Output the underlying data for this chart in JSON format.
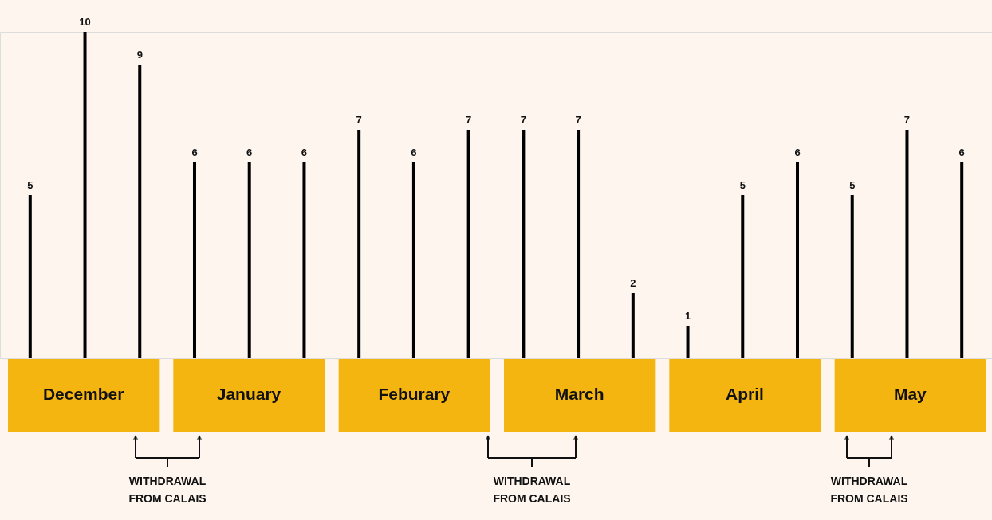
{
  "chart_data": {
    "type": "bar",
    "categories": [
      null,
      null,
      null,
      null,
      null,
      null,
      null,
      null,
      null,
      null,
      null,
      null,
      null,
      null,
      null,
      null,
      null,
      null
    ],
    "values": [
      5,
      10,
      9,
      6,
      6,
      6,
      7,
      6,
      7,
      7,
      7,
      2,
      1,
      5,
      6,
      5,
      7,
      6
    ],
    "color": "#000000",
    "data_labels": true,
    "ylim": [
      0,
      10
    ],
    "tick_labels": false,
    "annotations": [
      "December",
      "January",
      "Feburary",
      "March",
      "April",
      "May",
      "WITHDRAWAL\nFROM CALAIS",
      "WITHDRAWAL\nFROM CALAIS",
      "WITHDRAWAL\nFROM CALAIS"
    ]
  }
}
